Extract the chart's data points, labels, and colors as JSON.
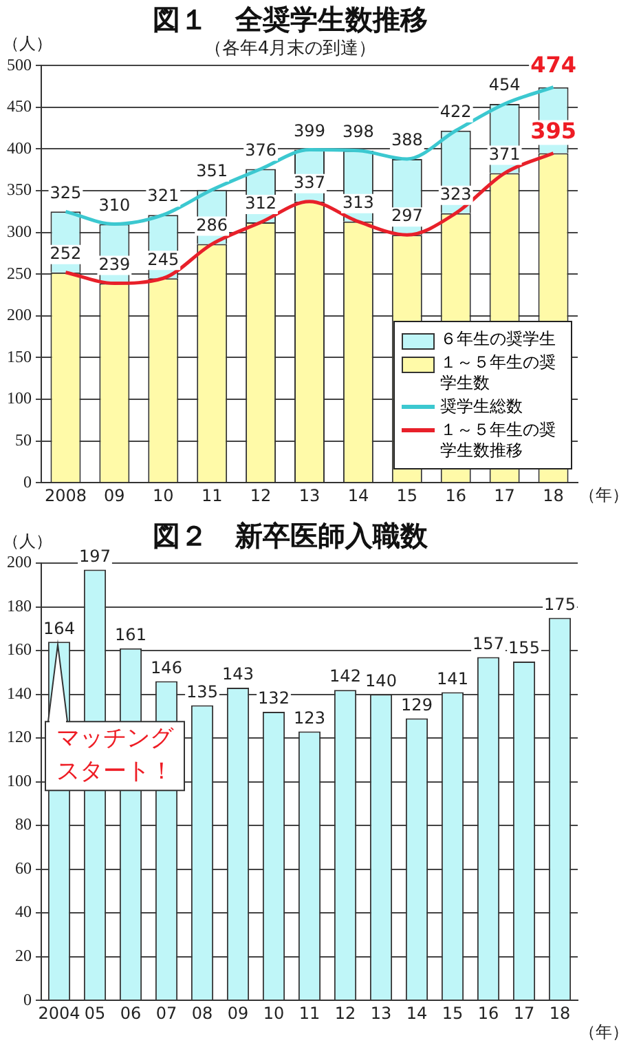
{
  "chart_data": [
    {
      "type": "bar",
      "title": "図１　全奨学生数推移",
      "subtitle": "（各年4月末の到達）",
      "ylabel": "（人）",
      "xlabel": "（年）",
      "categories": [
        "2008",
        "09",
        "10",
        "11",
        "12",
        "13",
        "14",
        "15",
        "16",
        "17",
        "18"
      ],
      "stacked": true,
      "ylim": [
        0,
        500
      ],
      "yticks": [
        0,
        50,
        100,
        150,
        200,
        250,
        300,
        350,
        400,
        450,
        500
      ],
      "grid": "y",
      "legend": "bottom right",
      "marker": "none",
      "series": [
        {
          "name": "１～５年生の奨学生数",
          "type": "bar",
          "color": "#fffaa8",
          "values": [
            252,
            239,
            245,
            286,
            312,
            337,
            313,
            297,
            323,
            371,
            395
          ]
        },
        {
          "name": "６年生の奨学生",
          "type": "bar",
          "color": "#bff6f8",
          "values": [
            73,
            71,
            76,
            65,
            64,
            62,
            85,
            91,
            99,
            83,
            79
          ]
        },
        {
          "name": "奨学生総数",
          "type": "line",
          "color": "#3cc8d0",
          "values": [
            325,
            310,
            321,
            351,
            376,
            399,
            398,
            388,
            422,
            454,
            474
          ],
          "value_labels": [
            "325",
            "310",
            "321",
            "351",
            "376",
            "399",
            "398",
            "388",
            "422",
            "454",
            "474"
          ]
        },
        {
          "name": "１～５年生の奨学生数推移",
          "type": "line",
          "color": "#e8202a",
          "values": [
            252,
            239,
            245,
            286,
            312,
            337,
            313,
            297,
            323,
            371,
            395
          ],
          "value_labels": [
            "252",
            "239",
            "245",
            "286",
            "312",
            "337",
            "313",
            "297",
            "323",
            "371",
            "395"
          ]
        }
      ]
    },
    {
      "type": "bar",
      "title": "図２　新卒医師入職数",
      "ylabel": "（人）",
      "xlabel": "（年）",
      "categories": [
        "2004",
        "05",
        "06",
        "07",
        "08",
        "09",
        "10",
        "11",
        "12",
        "13",
        "14",
        "15",
        "16",
        "17",
        "18"
      ],
      "values": [
        164,
        197,
        161,
        146,
        135,
        143,
        132,
        123,
        142,
        140,
        129,
        141,
        157,
        155,
        175
      ],
      "color": "#bff6f8",
      "data_labels": true,
      "ylim": [
        0,
        200
      ],
      "yticks": [
        0,
        20,
        40,
        60,
        80,
        100,
        120,
        140,
        160,
        180,
        200
      ],
      "grid": "y",
      "annotations": [
        {
          "text": "マッチングスタート！",
          "x": "2004",
          "y": 164
        }
      ]
    }
  ]
}
